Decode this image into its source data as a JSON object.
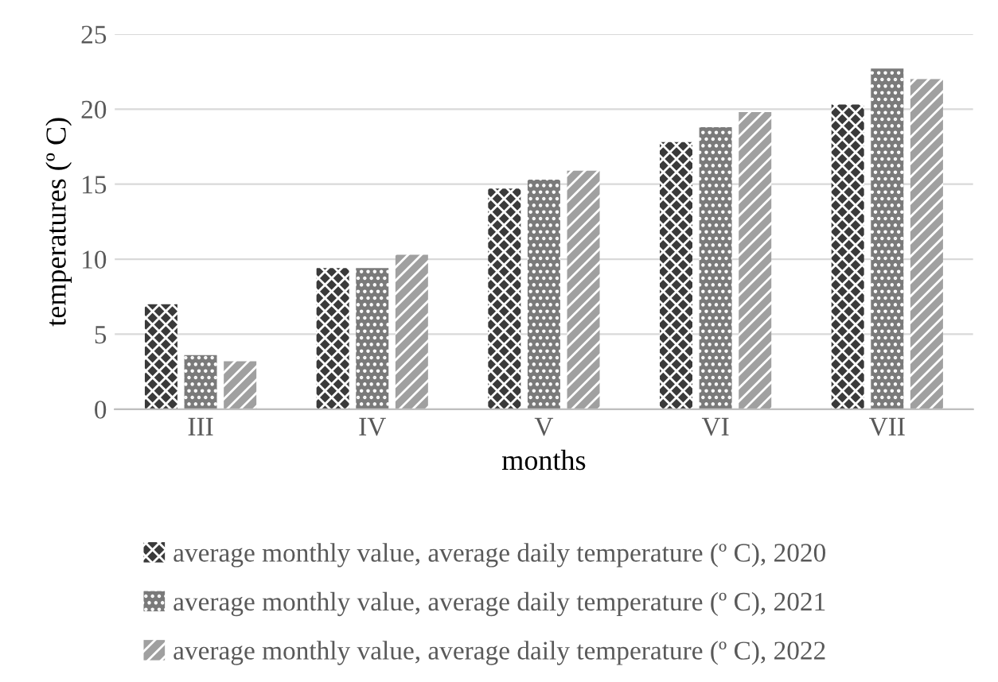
{
  "chart_data": {
    "type": "bar",
    "xlabel": "months",
    "ylabel": "temperatures (º C)",
    "categories": [
      "III",
      "IV",
      "V",
      "VI",
      "VII"
    ],
    "series": [
      {
        "name": "average monthly value, average daily temperature (º C), 2020",
        "color": "#3a3a3a",
        "values": [
          7.0,
          9.4,
          14.7,
          17.8,
          20.3
        ]
      },
      {
        "name": "average monthly value, average daily temperature (º C), 2021",
        "color": "#7a7a7a",
        "values": [
          3.6,
          9.4,
          15.3,
          18.8,
          22.7
        ]
      },
      {
        "name": "average monthly value, average daily temperature (º C), 2022",
        "color": "#a0a0a0",
        "values": [
          3.2,
          10.3,
          15.9,
          19.8,
          22.0
        ]
      }
    ],
    "ylim": [
      0,
      25
    ],
    "yticks": [
      0,
      5,
      10,
      15,
      20,
      25
    ],
    "grid": "y",
    "legend": "bottom"
  }
}
